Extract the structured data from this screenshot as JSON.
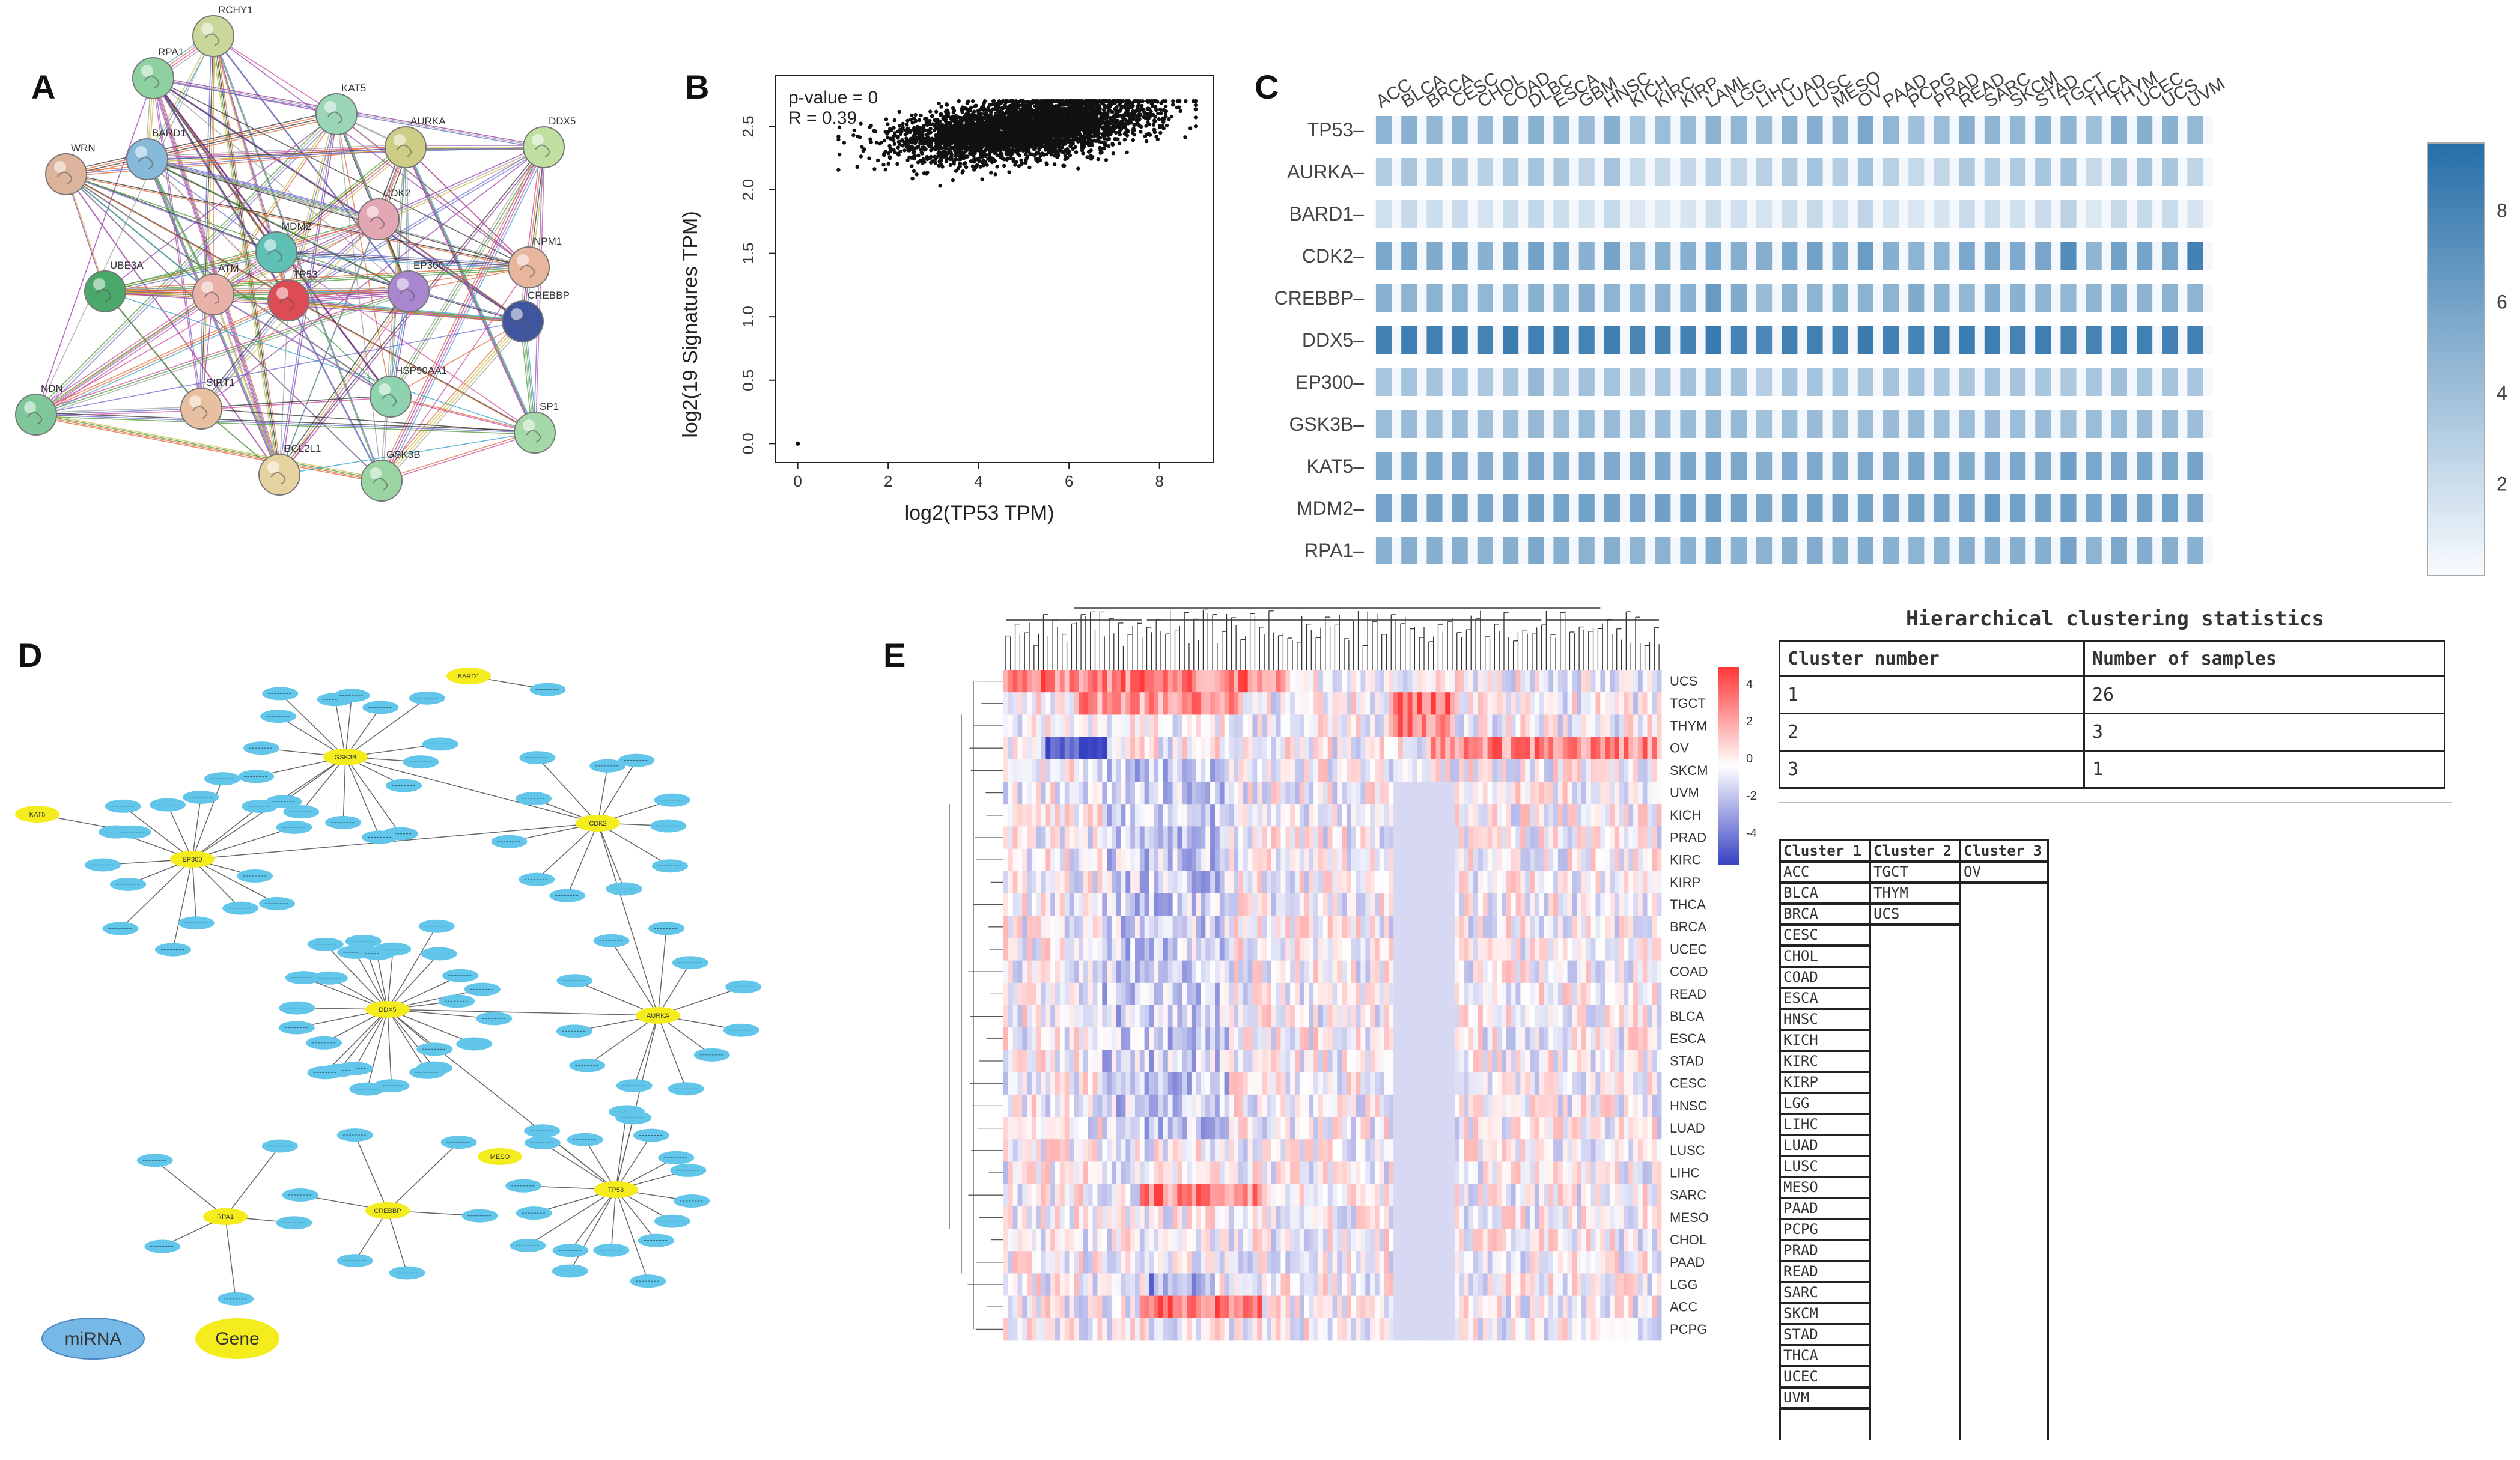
{
  "panel_labels": {
    "a": "A",
    "b": "B",
    "c": "C",
    "d": "D",
    "e": "E"
  },
  "network_a": {
    "nodes": [
      {
        "label": "RCHY1",
        "color": "#c9d79a"
      },
      {
        "label": "RPA1",
        "color": "#8fd0a0"
      },
      {
        "label": "KAT5",
        "color": "#9ad6b6"
      },
      {
        "label": "AURKA",
        "color": "#cdcd86"
      },
      {
        "label": "DDX5",
        "color": "#bfe0a0"
      },
      {
        "label": "BARD1",
        "color": "#86b9da"
      },
      {
        "label": "WRN",
        "color": "#dcb49c"
      },
      {
        "label": "CDK2",
        "color": "#e3a7b4"
      },
      {
        "label": "MDM2",
        "color": "#5fc0b6"
      },
      {
        "label": "NPM1",
        "color": "#e7b69c"
      },
      {
        "label": "UBE3A",
        "color": "#4aa86a"
      },
      {
        "label": "ATM",
        "color": "#e8b2a8"
      },
      {
        "label": "TP53",
        "color": "#dd4b55"
      },
      {
        "label": "EP300",
        "color": "#a887cf"
      },
      {
        "label": "CREBBP",
        "color": "#3f569e"
      },
      {
        "label": "SIRT1",
        "color": "#e8c0a0"
      },
      {
        "label": "HSP90AA1",
        "color": "#8fd2b0"
      },
      {
        "label": "NDN",
        "color": "#7fc79a"
      },
      {
        "label": "SP1",
        "color": "#a5d8a8"
      },
      {
        "label": "BCL2L1",
        "color": "#e6d4a0"
      },
      {
        "label": "GSK3B",
        "color": "#9ad4a2"
      }
    ]
  },
  "scatter_b": {
    "annotation_p": "p-value = 0",
    "annotation_r": "R = 0.39",
    "xlabel": "log2(TP53 TPM)",
    "ylabel": "log2(19 Signatures TPM)",
    "xticks": [
      "0",
      "2",
      "4",
      "6",
      "8"
    ],
    "yticks": [
      "0.0",
      "0.5",
      "1.0",
      "1.5",
      "2.0",
      "2.5"
    ]
  },
  "chart_data": {
    "type": "heatmap",
    "title": "",
    "columns": [
      "ACC",
      "BLCA",
      "BRCA",
      "CESC",
      "CHOL",
      "COAD",
      "DLBC",
      "ESCA",
      "GBM",
      "HNSC",
      "KICH",
      "KIRC",
      "KIRP",
      "LAML",
      "LGG",
      "LIHC",
      "LUAD",
      "LUSC",
      "MESO",
      "OV",
      "PAAD",
      "PCPG",
      "PRAD",
      "READ",
      "SARC",
      "SKCM",
      "STAD",
      "TGCT",
      "THCA",
      "THYM",
      "UCEC",
      "UCS",
      "UVM"
    ],
    "rows": [
      "TP53",
      "AURKA",
      "BARD1",
      "CDK2",
      "CREBBP",
      "DDX5",
      "EP300",
      "GSK3B",
      "KAT5",
      "MDM2",
      "RPA1"
    ],
    "values": [
      [
        4.8,
        5.0,
        4.6,
        4.9,
        4.5,
        5.2,
        5.0,
        4.7,
        4.3,
        5.1,
        3.8,
        4.2,
        4.4,
        4.9,
        4.6,
        4.3,
        4.9,
        5.2,
        4.7,
        5.6,
        4.6,
        4.0,
        4.2,
        5.1,
        4.8,
        4.6,
        5.0,
        4.8,
        4.0,
        5.3,
        5.1,
        5.0,
        4.5
      ],
      [
        3.2,
        3.6,
        3.4,
        3.5,
        2.8,
        3.4,
        3.8,
        3.5,
        2.6,
        3.7,
        2.2,
        2.3,
        2.4,
        3.0,
        2.5,
        2.9,
        3.3,
        3.8,
        3.1,
        3.9,
        2.9,
        2.3,
        2.5,
        3.4,
        3.2,
        3.3,
        3.6,
        3.9,
        2.3,
        3.6,
        3.7,
        3.5,
        2.6
      ],
      [
        1.8,
        2.2,
        2.0,
        2.1,
        1.6,
        2.1,
        2.4,
        2.0,
        1.7,
        2.2,
        1.3,
        1.4,
        1.5,
        2.0,
        1.8,
        1.6,
        2.0,
        2.3,
        1.9,
        2.6,
        1.7,
        1.4,
        1.5,
        2.1,
        2.0,
        1.9,
        2.1,
        2.7,
        1.3,
        2.3,
        2.2,
        2.1,
        1.5
      ],
      [
        5.6,
        5.8,
        5.4,
        5.7,
        5.0,
        5.6,
        6.0,
        5.6,
        5.0,
        5.9,
        4.6,
        5.0,
        5.1,
        5.6,
        5.2,
        5.2,
        5.6,
        6.0,
        5.4,
        6.4,
        5.1,
        4.8,
        4.8,
        5.6,
        5.8,
        5.5,
        5.8,
        7.5,
        4.7,
        6.0,
        5.9,
        5.8,
        8.2
      ],
      [
        5.0,
        4.8,
        4.9,
        4.8,
        4.6,
        4.6,
        5.0,
        4.7,
        5.2,
        4.8,
        4.6,
        4.9,
        5.0,
        6.5,
        5.4,
        4.3,
        4.9,
        4.8,
        5.0,
        4.9,
        4.8,
        5.4,
        4.9,
        4.6,
        5.1,
        5.0,
        4.7,
        4.6,
        4.7,
        5.2,
        4.9,
        4.9,
        4.8
      ],
      [
        8.2,
        8.4,
        8.3,
        8.4,
        8.0,
        8.5,
        8.3,
        8.3,
        8.1,
        8.4,
        7.9,
        8.0,
        8.2,
        8.6,
        8.0,
        7.8,
        8.3,
        8.3,
        8.1,
        8.6,
        8.2,
        8.0,
        8.3,
        8.5,
        8.4,
        8.1,
        8.4,
        8.0,
        8.1,
        8.3,
        8.3,
        8.2,
        8.2
      ],
      [
        3.6,
        3.8,
        3.7,
        3.8,
        3.4,
        3.6,
        4.5,
        3.6,
        3.9,
        3.8,
        3.5,
        3.8,
        3.9,
        4.2,
        3.9,
        3.0,
        3.7,
        3.8,
        3.7,
        3.6,
        3.7,
        3.9,
        3.6,
        3.6,
        3.8,
        3.7,
        3.6,
        3.4,
        3.6,
        4.0,
        3.8,
        3.7,
        3.6
      ],
      [
        4.2,
        4.3,
        4.2,
        4.3,
        4.0,
        4.1,
        4.5,
        4.2,
        4.4,
        4.3,
        4.2,
        4.3,
        4.4,
        4.6,
        4.5,
        3.9,
        4.2,
        4.3,
        4.2,
        4.2,
        4.3,
        4.5,
        4.2,
        4.2,
        4.3,
        4.2,
        4.3,
        4.0,
        4.2,
        4.4,
        4.3,
        4.3,
        4.1
      ],
      [
        5.4,
        5.5,
        5.6,
        5.5,
        5.3,
        5.4,
        5.8,
        5.4,
        5.5,
        5.5,
        5.5,
        5.6,
        5.7,
        5.9,
        5.6,
        5.2,
        5.5,
        5.5,
        5.4,
        5.6,
        5.5,
        5.7,
        5.6,
        5.4,
        5.5,
        5.6,
        5.5,
        6.2,
        5.6,
        5.8,
        5.7,
        5.6,
        5.9
      ],
      [
        5.9,
        6.0,
        5.9,
        6.0,
        5.8,
        5.9,
        6.1,
        5.9,
        6.0,
        6.0,
        5.8,
        6.1,
        6.2,
        6.4,
        6.0,
        5.7,
        5.9,
        6.0,
        6.0,
        6.0,
        5.9,
        6.0,
        5.9,
        5.9,
        6.5,
        6.0,
        6.0,
        6.2,
        5.8,
        6.3,
        6.0,
        6.0,
        5.8
      ],
      [
        5.0,
        5.2,
        5.1,
        5.2,
        4.9,
        5.2,
        5.6,
        5.1,
        4.9,
        5.2,
        4.7,
        4.9,
        5.0,
        5.6,
        5.0,
        4.9,
        5.2,
        5.3,
        5.1,
        5.4,
        5.0,
        4.8,
        4.9,
        5.2,
        5.1,
        5.1,
        5.2,
        5.9,
        4.8,
        5.6,
        5.3,
        5.2,
        5.0
      ]
    ],
    "color_range": [
      0,
      9.5
    ],
    "colorbar_ticks": [
      "8",
      "6",
      "4",
      "2"
    ]
  },
  "network_d": {
    "hubs": [
      {
        "label": "GSK3B",
        "type": "gene"
      },
      {
        "label": "EP300",
        "type": "gene"
      },
      {
        "label": "CDK2",
        "type": "gene"
      },
      {
        "label": "DDX5",
        "type": "gene"
      },
      {
        "label": "AURKA",
        "type": "gene"
      },
      {
        "label": "TP53",
        "type": "gene"
      },
      {
        "label": "RPA1",
        "type": "gene"
      },
      {
        "label": "CREBBP",
        "type": "gene"
      },
      {
        "label": "BARD1",
        "type": "gene"
      },
      {
        "label": "KAT5",
        "type": "gene"
      },
      {
        "label": "MESO",
        "type": "gene"
      }
    ],
    "legend_mirna": "miRNA",
    "legend_gene": "Gene"
  },
  "heatmap_e": {
    "row_labels": [
      "UCS",
      "TGCT",
      "THYM",
      "OV",
      "SKCM",
      "UVM",
      "KICH",
      "PRAD",
      "KIRC",
      "KIRP",
      "THCA",
      "BRCA",
      "UCEC",
      "COAD",
      "READ",
      "BLCA",
      "ESCA",
      "STAD",
      "CESC",
      "HNSC",
      "LUAD",
      "LUSC",
      "LIHC",
      "SARC",
      "MESO",
      "CHOL",
      "PAAD",
      "LGG",
      "ACC",
      "PCPG"
    ],
    "colorbar_ticks": [
      "4",
      "2",
      "0",
      "-2",
      "-4"
    ]
  },
  "stats_table": {
    "title": "Hierarchical clustering statistics",
    "headers": [
      "Cluster number",
      "Number of samples"
    ],
    "rows": [
      [
        "1",
        "26"
      ],
      [
        "2",
        "3"
      ],
      [
        "3",
        "1"
      ]
    ]
  },
  "cluster_table": {
    "headers": [
      "Cluster 1",
      "Cluster 2",
      "Cluster 3"
    ],
    "cluster1": [
      "ACC",
      "BLCA",
      "BRCA",
      "CESC",
      "CHOL",
      "COAD",
      "ESCA",
      "HNSC",
      "KICH",
      "KIRC",
      "KIRP",
      "LGG",
      "LIHC",
      "LUAD",
      "LUSC",
      "MESO",
      "PAAD",
      "PCPG",
      "PRAD",
      "READ",
      "SARC",
      "SKCM",
      "STAD",
      "THCA",
      "UCEC",
      "UVM"
    ],
    "cluster2": [
      "TGCT",
      "THYM",
      "UCS"
    ],
    "cluster3": [
      "OV"
    ]
  }
}
